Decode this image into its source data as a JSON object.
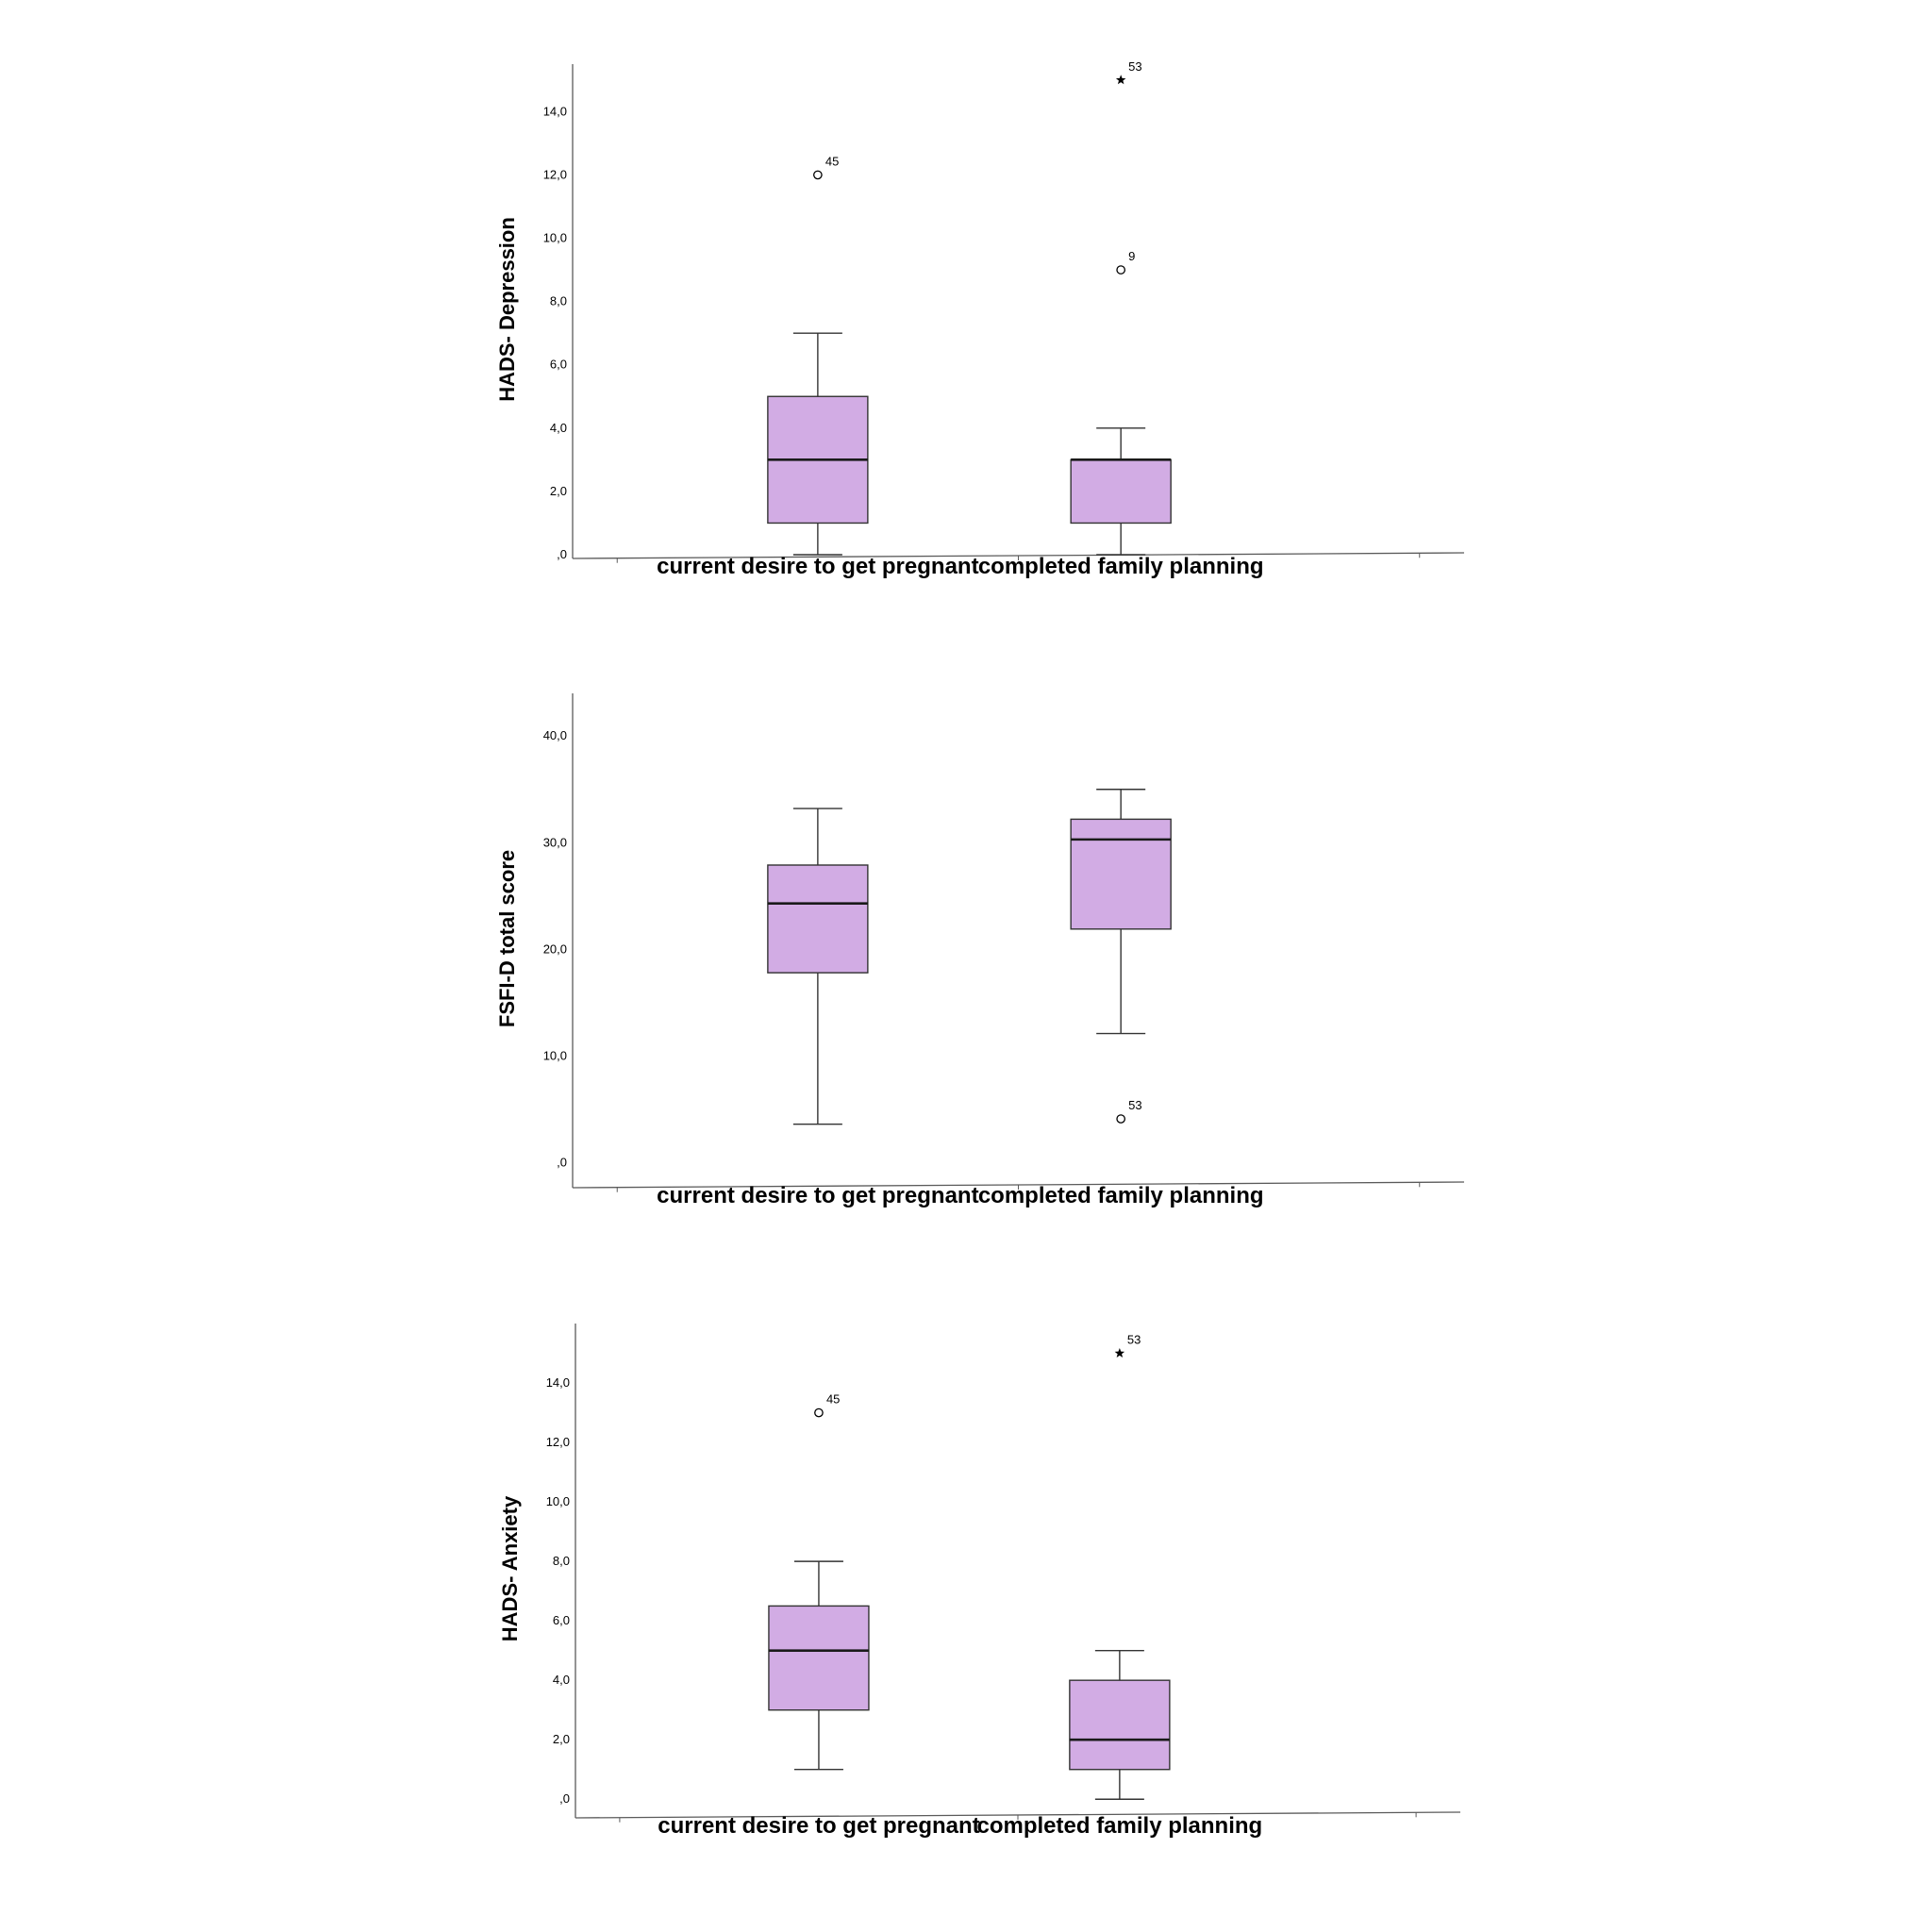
{
  "colors": {
    "box_fill": "#d2ace4",
    "stroke": "#333333",
    "axis": "#5a5a5a"
  },
  "chart_data": [
    {
      "type": "boxplot",
      "ylabel": "HADS- Depression",
      "categories": [
        "current desire to get pregnant",
        "completed family planning"
      ],
      "yticks": [
        0,
        2,
        4,
        6,
        8,
        10,
        12,
        14
      ],
      "ytick_labels": [
        ",0",
        "2,0",
        "4,0",
        "6,0",
        "8,0",
        "10,0",
        "12,0",
        "14,0"
      ],
      "ylim": [
        0,
        15.5
      ],
      "series": [
        {
          "category": "current desire to get pregnant",
          "min": 0,
          "q1": 1.0,
          "median": 3.0,
          "q3": 5.0,
          "max": 7.0,
          "outliers": [
            {
              "value": 12.0,
              "label": "45",
              "marker": "circle"
            }
          ]
        },
        {
          "category": "completed family planning",
          "min": 0,
          "q1": 1.0,
          "median": 3.0,
          "q3": 3.0,
          "max": 4.0,
          "outliers": [
            {
              "value": 15.0,
              "label": "53",
              "marker": "star"
            },
            {
              "value": 9.0,
              "label": "9",
              "marker": "circle"
            }
          ]
        }
      ]
    },
    {
      "type": "boxplot",
      "ylabel": "FSFI-D total score",
      "categories": [
        "current desire to get pregnant",
        "completed family planning"
      ],
      "yticks": [
        0,
        10,
        20,
        30,
        40
      ],
      "ytick_labels": [
        ",0",
        "10,0",
        "20,0",
        "30,0",
        "40,0"
      ],
      "ylim": [
        -2,
        44
      ],
      "series": [
        {
          "category": "current desire to get pregnant",
          "min": 3.6,
          "q1": 17.8,
          "median": 24.3,
          "q3": 27.9,
          "max": 33.2,
          "outliers": []
        },
        {
          "category": "completed family planning",
          "min": 12.1,
          "q1": 21.9,
          "median": 30.3,
          "q3": 32.2,
          "max": 35.0,
          "outliers": [
            {
              "value": 4.1,
              "label": "53",
              "marker": "circle"
            }
          ]
        }
      ]
    },
    {
      "type": "boxplot",
      "ylabel": "HADS- Anxiety",
      "categories": [
        "current desire to get pregnant",
        "completed family planning"
      ],
      "yticks": [
        0,
        2,
        4,
        6,
        8,
        10,
        12,
        14
      ],
      "ytick_labels": [
        ",0",
        "2,0",
        "4,0",
        "6,0",
        "8,0",
        "10,0",
        "12,0",
        "14,0"
      ],
      "ylim": [
        -0.5,
        16
      ],
      "series": [
        {
          "category": "current desire to get pregnant",
          "min": 1.0,
          "q1": 3.0,
          "median": 5.0,
          "q3": 6.5,
          "max": 8.0,
          "outliers": [
            {
              "value": 13.0,
              "label": "45",
              "marker": "circle"
            }
          ]
        },
        {
          "category": "completed family planning",
          "min": 0,
          "q1": 1.0,
          "median": 2.0,
          "q3": 4.0,
          "max": 5.0,
          "outliers": [
            {
              "value": 15.0,
              "label": "53",
              "marker": "star"
            }
          ]
        }
      ]
    }
  ]
}
